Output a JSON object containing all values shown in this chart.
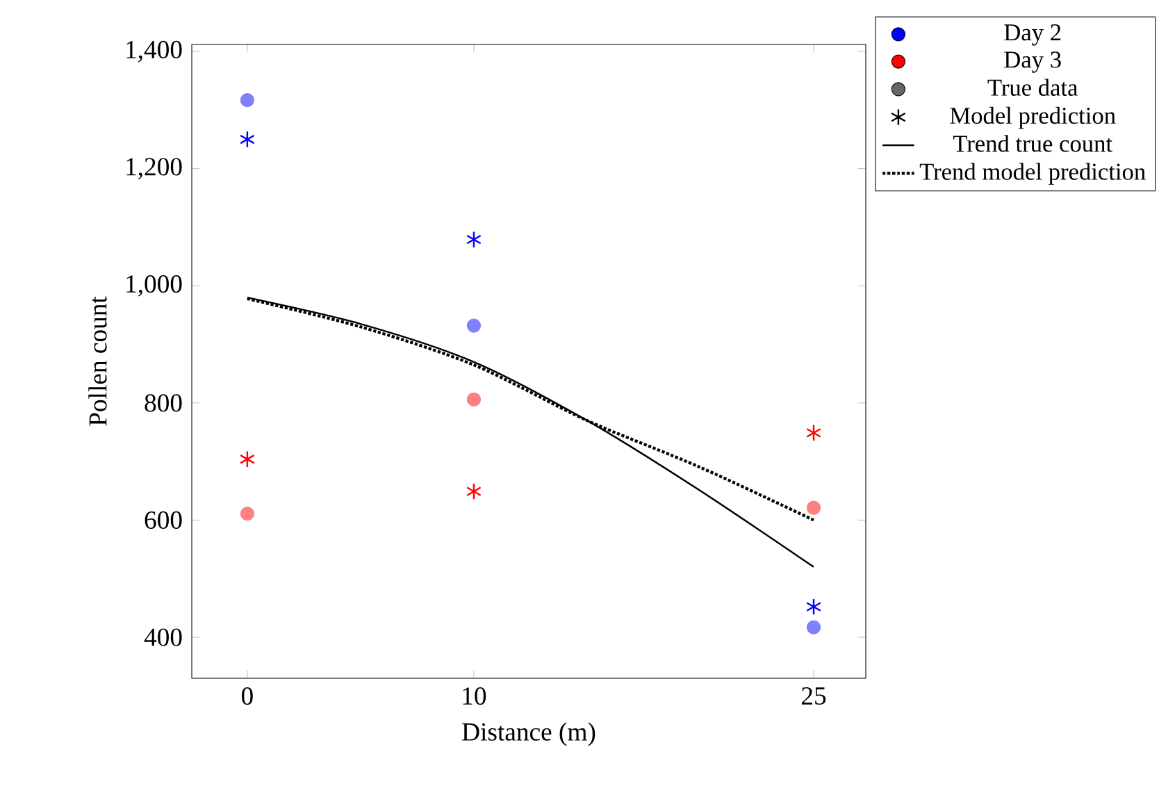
{
  "chart_data": {
    "type": "scatter",
    "xlabel": "Distance (m)",
    "ylabel": "Pollen count",
    "xlim": [
      -2.45,
      27.3
    ],
    "ylim": [
      330,
      1412
    ],
    "xticks": [
      0,
      10,
      25
    ],
    "yticks": [
      {
        "value": 400,
        "label": "400"
      },
      {
        "value": 600,
        "label": "600"
      },
      {
        "value": 800,
        "label": "800"
      },
      {
        "value": 1000,
        "label": "1,000"
      },
      {
        "value": 1200,
        "label": "1,200"
      },
      {
        "value": 1400,
        "label": "1,400"
      }
    ],
    "grid": false,
    "legend": "top right",
    "annotations": [
      "Day 2",
      "Day 3",
      "True data",
      "Model prediction"
    ],
    "series": [
      {
        "name": "Trend true count",
        "type": "line",
        "marker": "none",
        "line_style": "solid",
        "color": "#000000",
        "x": [
          0,
          5,
          10,
          15,
          20,
          25
        ],
        "values": [
          980,
          935,
          870,
          770,
          650,
          520
        ]
      },
      {
        "name": "Trend model prediction",
        "type": "line",
        "marker": "none",
        "line_style": "dotted",
        "color": "#000000",
        "x": [
          0,
          5,
          10,
          15,
          20,
          25
        ],
        "values": [
          978,
          930,
          865,
          770,
          690,
          600
        ]
      },
      {
        "marker": "circle",
        "color": "#8080ff",
        "x": [
          0,
          10,
          25
        ],
        "values": [
          1317,
          932,
          417
        ]
      },
      {
        "marker": "cross",
        "color": "#0000ff",
        "x": [
          0,
          10,
          25
        ],
        "values": [
          1250,
          1079,
          452
        ]
      },
      {
        "marker": "circle",
        "color": "#ff8080",
        "x": [
          0,
          10,
          25
        ],
        "values": [
          611,
          806,
          621
        ]
      },
      {
        "marker": "cross",
        "color": "#ff0000",
        "x": [
          0,
          10,
          25
        ],
        "values": [
          704,
          649,
          749
        ]
      }
    ]
  }
}
